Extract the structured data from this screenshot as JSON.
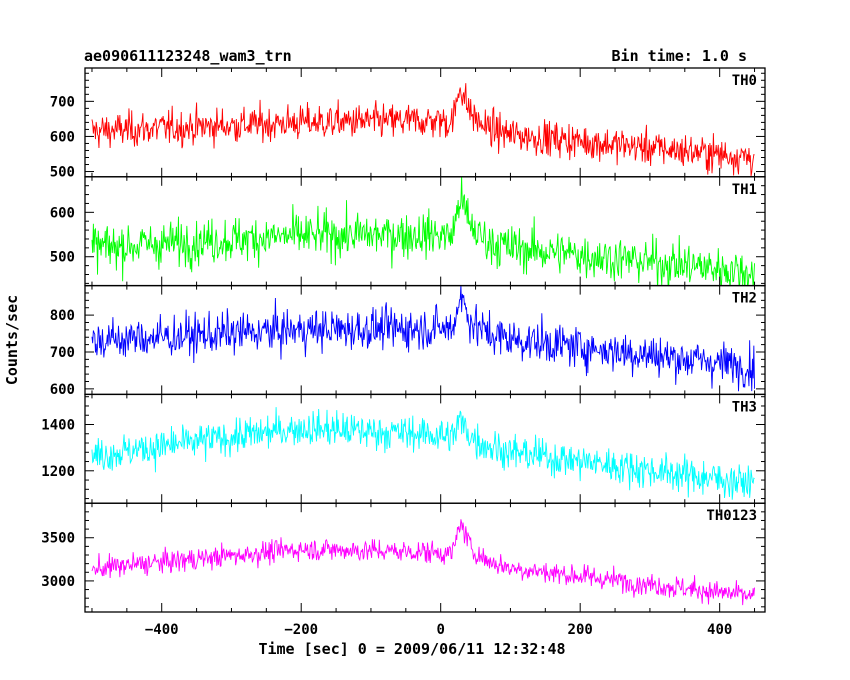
{
  "chart_data": {
    "type": "line",
    "title": "ae090611123248_wam3_trn",
    "bin_time_label": "Bin time: 1.0 s",
    "xlabel": "Time [sec] 0 = 2009/06/11 12:32:48",
    "ylabel": "Counts/sec",
    "xlim": [
      -510,
      465
    ],
    "x_ticks": [
      -400,
      -200,
      0,
      200,
      400
    ],
    "x_tick_labels": [
      "−400",
      "−200",
      "0",
      "200",
      "400"
    ],
    "burst_time": 30,
    "panels": [
      {
        "name": "TH0",
        "color": "#ff0000",
        "ylim": [
          485,
          795
        ],
        "yticks": [
          500,
          600,
          700
        ],
        "ytick_labels": [
          "500",
          "600",
          "700"
        ],
        "trend_x": [
          -500,
          -200,
          0,
          100,
          450
        ],
        "trend_y": [
          615,
          640,
          645,
          605,
          540
        ],
        "burst_peak": 750,
        "noise_sd": 25
      },
      {
        "name": "TH1",
        "color": "#00ff00",
        "ylim": [
          435,
          680
        ],
        "yticks": [
          500,
          600
        ],
        "ytick_labels": [
          "500",
          "600"
        ],
        "trend_x": [
          -500,
          -200,
          0,
          100,
          450
        ],
        "trend_y": [
          520,
          548,
          550,
          520,
          465
        ],
        "burst_peak": 640,
        "noise_sd": 25
      },
      {
        "name": "TH2",
        "color": "#0000ff",
        "ylim": [
          585,
          880
        ],
        "yticks": [
          600,
          700,
          800
        ],
        "ytick_labels": [
          "600",
          "700",
          "800"
        ],
        "trend_x": [
          -500,
          -200,
          0,
          100,
          450
        ],
        "trend_y": [
          730,
          760,
          765,
          735,
          660
        ],
        "burst_peak": 860,
        "noise_sd": 28
      },
      {
        "name": "TH3",
        "color": "#00ffff",
        "ylim": [
          1060,
          1530
        ],
        "yticks": [
          1200,
          1400
        ],
        "ytick_labels": [
          "1200",
          "1400"
        ],
        "trend_x": [
          -500,
          -200,
          0,
          100,
          450
        ],
        "trend_y": [
          1265,
          1385,
          1355,
          1280,
          1145
        ],
        "burst_peak": 1420,
        "noise_sd": 38
      },
      {
        "name": "TH0123",
        "color": "#ff00ff",
        "ylim": [
          2640,
          3900
        ],
        "yticks": [
          3000,
          3500
        ],
        "ytick_labels": [
          "3000",
          "3500"
        ],
        "trend_x": [
          -500,
          -200,
          0,
          100,
          450
        ],
        "trend_y": [
          3140,
          3370,
          3330,
          3150,
          2820
        ],
        "burst_peak": 3700,
        "noise_sd": 65
      }
    ]
  }
}
